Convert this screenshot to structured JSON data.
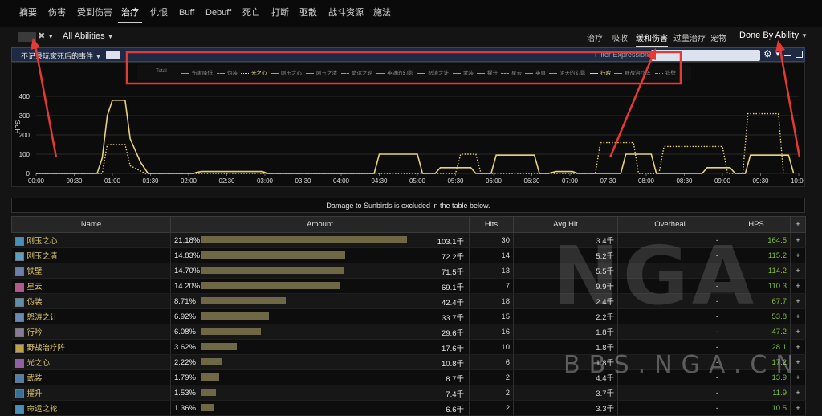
{
  "nav": {
    "tabs": [
      "摘要",
      "伤害",
      "受到伤害",
      "治疗",
      "仇恨",
      "Buff",
      "Debuff",
      "死亡",
      "打断",
      "驱散",
      "战斗资源",
      "施法"
    ],
    "active": 3
  },
  "toolbar": {
    "abilities_label": "All Abilities",
    "view_tabs": [
      "治疗",
      "吸收",
      "缓和伤害",
      "过量治疗",
      "宠物"
    ],
    "active_view": 2,
    "done_by": "Done By Ability"
  },
  "filterbar": {
    "label": "不记录玩家死后的事件",
    "filter_label": "Filter Expression"
  },
  "chart": {
    "ylabel": "HPS",
    "yticks": [
      "0",
      "100",
      "200",
      "300",
      "400"
    ],
    "xticks": [
      "00:00",
      "00:30",
      "01:00",
      "01:30",
      "02:00",
      "02:30",
      "03:00",
      "03:30",
      "04:00",
      "04:30",
      "05:00",
      "05:30",
      "06:00",
      "06:30",
      "07:00",
      "07:30",
      "08:00",
      "08:30",
      "09:00",
      "09:30",
      "10:00"
    ],
    "legend": [
      {
        "label": "Total",
        "style": "solid",
        "color": "#9a9a9a"
      },
      {
        "label": "伤害降低",
        "style": "solid",
        "color": "#9a9a9a"
      },
      {
        "label": "伪装",
        "style": "dashed",
        "color": "#9a9a9a"
      },
      {
        "label": "光之心",
        "style": "dotted",
        "color": "#e8d27a"
      },
      {
        "label": "刚玉之心",
        "style": "solid",
        "color": "#9a9a9a"
      },
      {
        "label": "刚玉之清",
        "style": "solid",
        "color": "#9a9a9a"
      },
      {
        "label": "命运之轮",
        "style": "dashed",
        "color": "#9a9a9a"
      },
      {
        "label": "英雄的幻影",
        "style": "solid",
        "color": "#9a9a9a"
      },
      {
        "label": "怒涛之计",
        "style": "solid",
        "color": "#9a9a9a"
      },
      {
        "label": "武装",
        "style": "solid",
        "color": "#9a9a9a"
      },
      {
        "label": "擢升",
        "style": "solid",
        "color": "#9a9a9a"
      },
      {
        "label": "星云",
        "style": "dashed",
        "color": "#9a9a9a"
      },
      {
        "label": "英勇",
        "style": "solid",
        "color": "#9a9a9a"
      },
      {
        "label": "阴天的幻影",
        "style": "solid",
        "color": "#9a9a9a"
      },
      {
        "label": "行吟",
        "style": "solid",
        "color": "#e8d27a"
      },
      {
        "label": "野战治疗阵",
        "style": "solid",
        "color": "#9a9a9a"
      },
      {
        "label": "铁壁",
        "style": "dotted",
        "color": "#9a9a9a"
      }
    ]
  },
  "chart_data": {
    "type": "line",
    "ylabel": "HPS",
    "ylim": [
      0,
      500
    ],
    "xlim": [
      0,
      600
    ],
    "series": [
      {
        "name": "行吟",
        "style": "solid",
        "points": [
          [
            0,
            0
          ],
          [
            48,
            0
          ],
          [
            52,
            80
          ],
          [
            56,
            300
          ],
          [
            60,
            380
          ],
          [
            70,
            380
          ],
          [
            74,
            180
          ],
          [
            78,
            120
          ],
          [
            82,
            60
          ],
          [
            88,
            0
          ],
          [
            124,
            0
          ],
          [
            126,
            5
          ],
          [
            130,
            10
          ],
          [
            178,
            10
          ],
          [
            182,
            0
          ],
          [
            266,
            0
          ],
          [
            270,
            100
          ],
          [
            300,
            100
          ],
          [
            304,
            0
          ],
          [
            314,
            0
          ],
          [
            318,
            30
          ],
          [
            342,
            30
          ],
          [
            346,
            0
          ],
          [
            358,
            0
          ],
          [
            362,
            95
          ],
          [
            392,
            95
          ],
          [
            396,
            0
          ],
          [
            403,
            0
          ],
          [
            406,
            5
          ],
          [
            409,
            10
          ],
          [
            422,
            10
          ],
          [
            426,
            0
          ],
          [
            460,
            0
          ],
          [
            464,
            100
          ],
          [
            484,
            100
          ],
          [
            488,
            0
          ],
          [
            524,
            0
          ],
          [
            528,
            30
          ],
          [
            546,
            30
          ],
          [
            550,
            0
          ],
          [
            558,
            0
          ],
          [
            562,
            95
          ],
          [
            592,
            95
          ],
          [
            596,
            0
          ],
          [
            644,
            0
          ]
        ]
      },
      {
        "name": "光之心",
        "style": "dotted",
        "points": [
          [
            0,
            0
          ],
          [
            52,
            0
          ],
          [
            56,
            150
          ],
          [
            70,
            150
          ],
          [
            74,
            40
          ],
          [
            80,
            20
          ],
          [
            86,
            0
          ],
          [
            330,
            0
          ],
          [
            334,
            100
          ],
          [
            346,
            100
          ],
          [
            350,
            0
          ],
          [
            440,
            0
          ],
          [
            444,
            160
          ],
          [
            470,
            160
          ],
          [
            474,
            0
          ],
          [
            490,
            0
          ],
          [
            494,
            140
          ],
          [
            540,
            140
          ],
          [
            544,
            0
          ],
          [
            556,
            0
          ],
          [
            560,
            310
          ],
          [
            584,
            310
          ],
          [
            588,
            0
          ],
          [
            644,
            0
          ]
        ]
      }
    ]
  },
  "notice": "Damage to Sunbirds is excluded in the table below.",
  "table": {
    "headers": [
      "Name",
      "Amount",
      "Hits",
      "Avg Hit",
      "Overheal",
      "HPS",
      "+"
    ],
    "rows": [
      {
        "name": "刚玉之心",
        "pct": "21.18%",
        "bar": 1.0,
        "amount": "103.1千",
        "hits": "30",
        "avg": "3.4千",
        "overheal": "-",
        "hps": "164.5",
        "icon": "#4a8fb5"
      },
      {
        "name": "刚玉之清",
        "pct": "14.83%",
        "bar": 0.7,
        "amount": "72.2千",
        "hits": "14",
        "avg": "5.2千",
        "overheal": "-",
        "hps": "115.2",
        "icon": "#5a9fc5"
      },
      {
        "name": "铁壁",
        "pct": "14.70%",
        "bar": 0.69,
        "amount": "71.5千",
        "hits": "13",
        "avg": "5.5千",
        "overheal": "-",
        "hps": "114.2",
        "icon": "#6c7fa8"
      },
      {
        "name": "星云",
        "pct": "14.20%",
        "bar": 0.67,
        "amount": "69.1千",
        "hits": "7",
        "avg": "9.9千",
        "overheal": "-",
        "hps": "110.3",
        "icon": "#b05a8a"
      },
      {
        "name": "伪装",
        "pct": "8.71%",
        "bar": 0.41,
        "amount": "42.4千",
        "hits": "18",
        "avg": "2.4千",
        "overheal": "-",
        "hps": "67.7",
        "icon": "#5a8fb0"
      },
      {
        "name": "怒涛之计",
        "pct": "6.92%",
        "bar": 0.33,
        "amount": "33.7千",
        "hits": "15",
        "avg": "2.2千",
        "overheal": "-",
        "hps": "53.8",
        "icon": "#6a88b0"
      },
      {
        "name": "行吟",
        "pct": "6.08%",
        "bar": 0.29,
        "amount": "29.6千",
        "hits": "16",
        "avg": "1.8千",
        "overheal": "-",
        "hps": "47.2",
        "icon": "#8a7a9a"
      },
      {
        "name": "野战治疗阵",
        "pct": "3.62%",
        "bar": 0.17,
        "amount": "17.6千",
        "hits": "10",
        "avg": "1.8千",
        "overheal": "-",
        "hps": "28.1",
        "icon": "#c0a040"
      },
      {
        "name": "光之心",
        "pct": "2.22%",
        "bar": 0.1,
        "amount": "10.8千",
        "hits": "6",
        "avg": "1.8千",
        "overheal": "-",
        "hps": "17.2",
        "icon": "#9060a0"
      },
      {
        "name": "武装",
        "pct": "1.79%",
        "bar": 0.085,
        "amount": "8.7千",
        "hits": "2",
        "avg": "4.4千",
        "overheal": "-",
        "hps": "13.9",
        "icon": "#4a7fb0"
      },
      {
        "name": "擢升",
        "pct": "1.53%",
        "bar": 0.072,
        "amount": "7.4千",
        "hits": "2",
        "avg": "3.7千",
        "overheal": "-",
        "hps": "11.9",
        "icon": "#3a6f9a"
      },
      {
        "name": "命运之轮",
        "pct": "1.36%",
        "bar": 0.064,
        "amount": "6.6千",
        "hits": "2",
        "avg": "3.3千",
        "overheal": "-",
        "hps": "10.5",
        "icon": "#4a8fb5"
      }
    ]
  },
  "watermark": {
    "big": "NGA",
    "small": "BBS.NGA.CN"
  },
  "colors": {
    "accent": "#e8d27a",
    "hps": "#7fbf3f",
    "annotation": "#e53935"
  }
}
